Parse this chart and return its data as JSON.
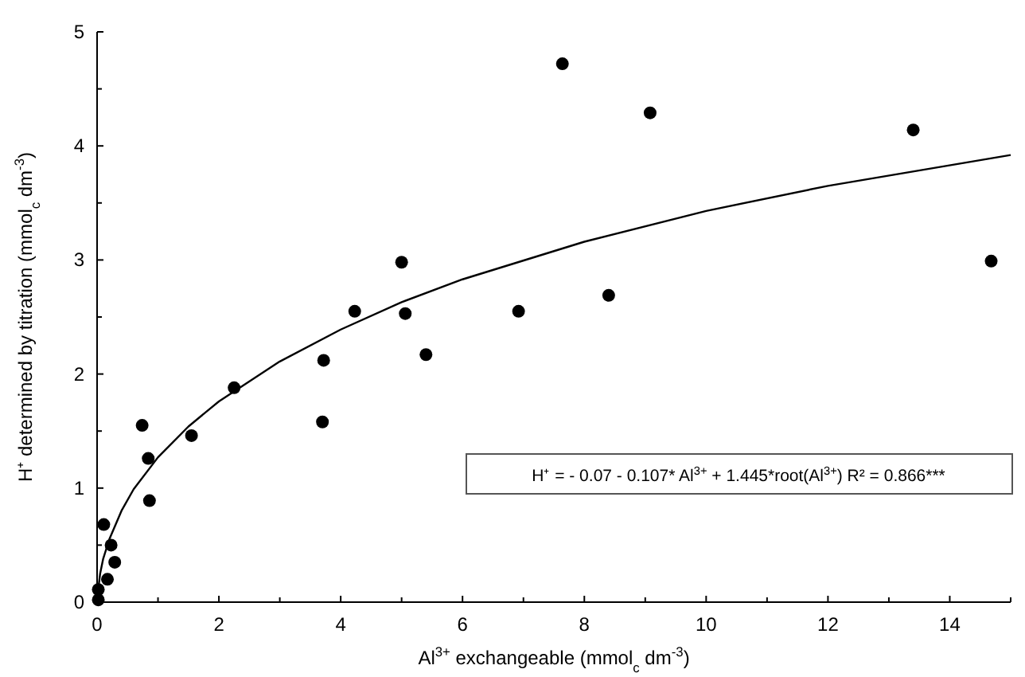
{
  "chart_data": {
    "type": "scatter",
    "xlabel": "Al$^{3+}$ exchangeable (mmol$_{c}$ dm$^{-3}$)",
    "ylabel": "H⁺ determined by titration (mmol$_{c}$ dm$^{-3}$)",
    "xlim": [
      0,
      15
    ],
    "ylim": [
      0,
      5
    ],
    "xticks": [
      0,
      {
        "value": 1,
        "label": null
      },
      2,
      {
        "value": 3,
        "label": null
      },
      4,
      {
        "value": 5,
        "label": null
      },
      6,
      {
        "value": 7,
        "label": null
      },
      8,
      {
        "value": 9,
        "label": null
      },
      10,
      {
        "value": 11,
        "label": null
      },
      12,
      {
        "value": 13,
        "label": null
      },
      14,
      {
        "value": 15,
        "label": null
      }
    ],
    "yticks": [
      0,
      {
        "value": 0.5,
        "label": null
      },
      1,
      {
        "value": 1.5,
        "label": null
      },
      2,
      {
        "value": 2.5,
        "label": null
      },
      3,
      {
        "value": 3.5,
        "label": null
      },
      4,
      {
        "value": 4.5,
        "label": null
      },
      5
    ],
    "marker": "circle",
    "grid": false,
    "series": [
      {
        "color": "#000000",
        "x": [
          0.02,
          0.02,
          0.11,
          0.23,
          0.17,
          0.29,
          0.74,
          0.84,
          0.86,
          1.55,
          2.25,
          3.7,
          3.72,
          4.23,
          5.0,
          5.06,
          5.4,
          6.92,
          7.64,
          8.4,
          9.08,
          13.4,
          14.68
        ],
        "values": [
          0.02,
          0.11,
          0.68,
          0.5,
          0.2,
          0.35,
          1.55,
          1.26,
          0.89,
          1.46,
          1.88,
          1.58,
          2.12,
          2.55,
          2.98,
          2.53,
          2.17,
          2.55,
          4.72,
          2.69,
          4.29,
          4.14,
          2.99
        ]
      },
      {
        "type": "line",
        "color": "#000000",
        "marker": "none",
        "line_style": "solid",
        "x": [
          0.01,
          0.05,
          0.1,
          0.2,
          0.4,
          0.6,
          1,
          1.5,
          2,
          3,
          4,
          5,
          6,
          8,
          10,
          12,
          15
        ],
        "values": [
          0.07,
          0.25,
          0.38,
          0.55,
          0.8,
          0.99,
          1.27,
          1.54,
          1.76,
          2.11,
          2.39,
          2.63,
          2.83,
          3.16,
          3.43,
          3.65,
          3.92
        ]
      }
    ],
    "annotations": [
      "H⁺ = - 0.07 - 0.107* Al$^{3+}$ + 1.445*root(Al$^{3+}$)  R² = 0.866***"
    ]
  }
}
